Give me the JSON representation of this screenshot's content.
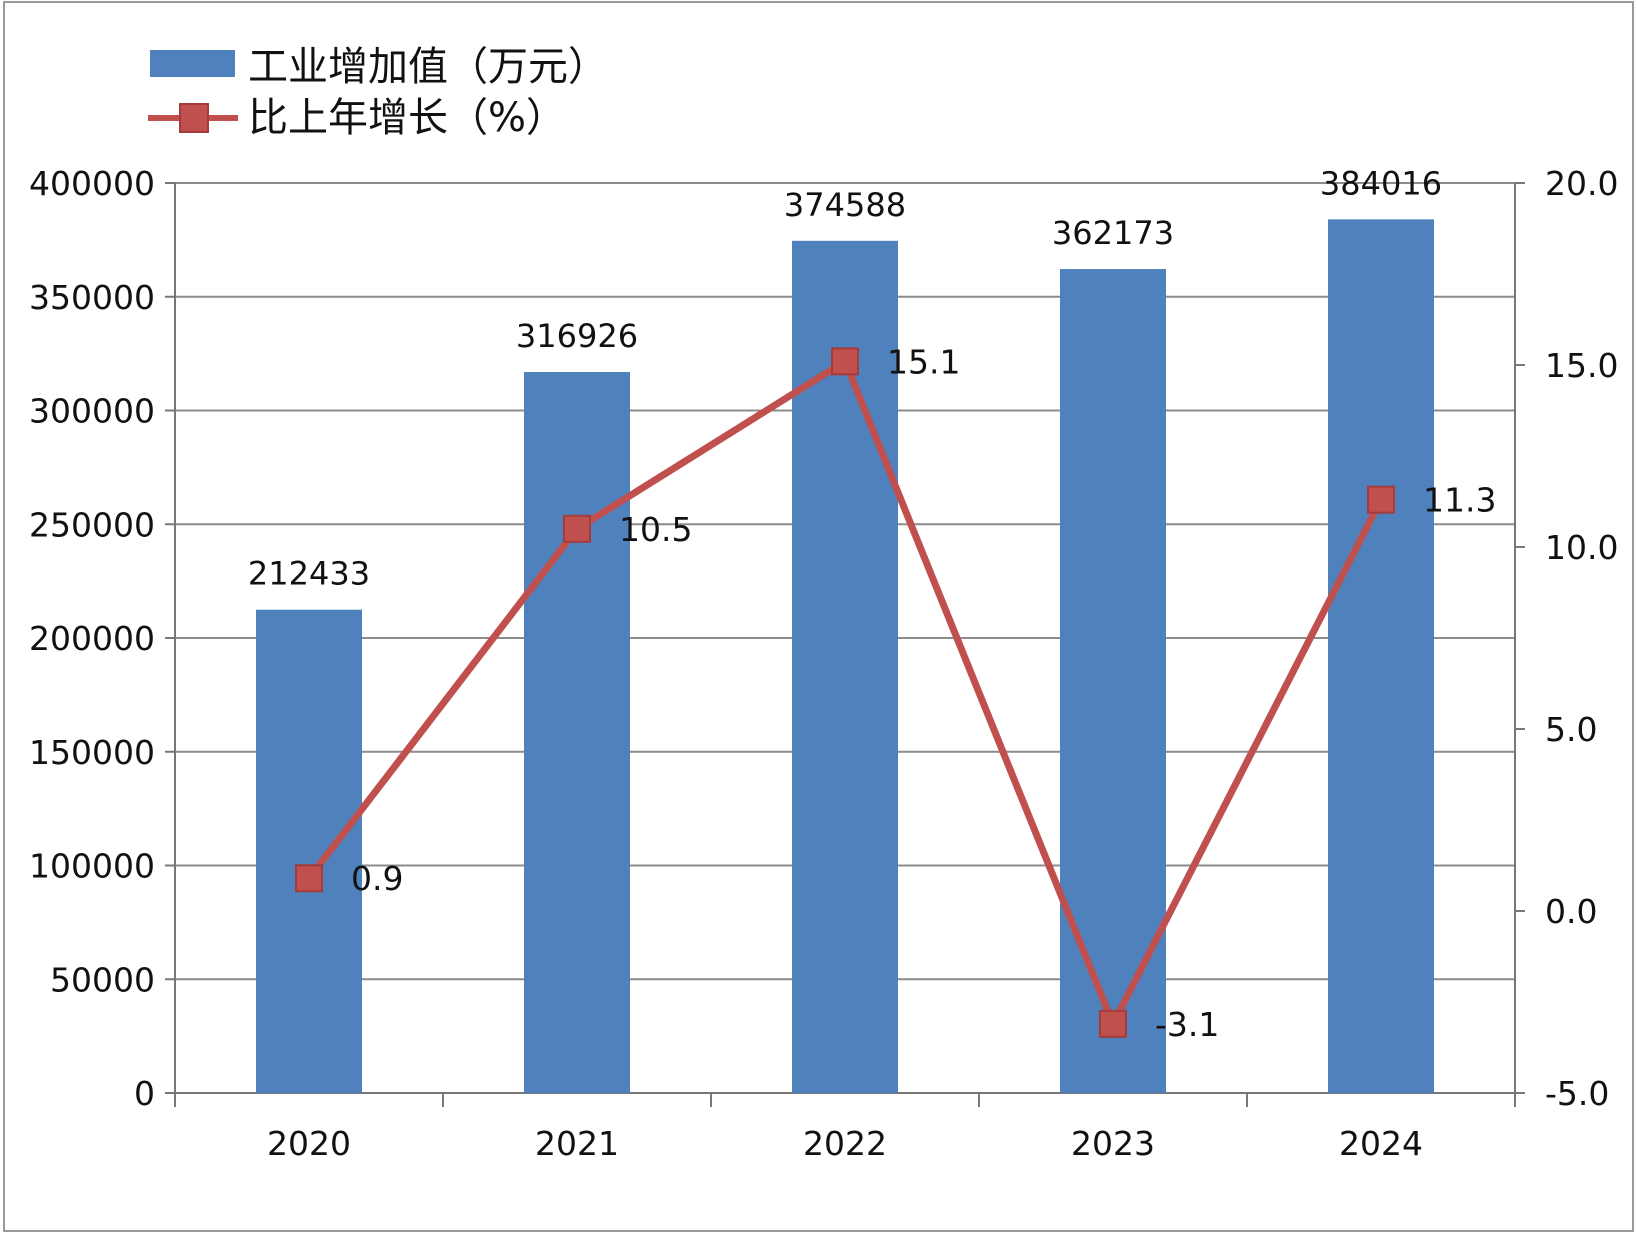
{
  "chart_data": {
    "type": "bar",
    "categories": [
      "2020",
      "2021",
      "2022",
      "2023",
      "2024"
    ],
    "series": [
      {
        "name": "工业增加值（万元）",
        "type": "bar",
        "axis": "left",
        "values": [
          212433,
          316926,
          374588,
          362173,
          384016
        ],
        "color": "#4f81bd"
      },
      {
        "name": "比上年增长（%）",
        "type": "line",
        "axis": "right",
        "values": [
          0.9,
          10.5,
          15.1,
          -3.1,
          11.3
        ],
        "color": "#c0504d"
      }
    ],
    "y_left": {
      "range": [
        0,
        400000
      ],
      "ticks": [
        "0",
        "50000",
        "100000",
        "150000",
        "200000",
        "250000",
        "300000",
        "350000",
        "400000"
      ]
    },
    "y_right": {
      "range": [
        -5.0,
        20.0
      ],
      "ticks": [
        "-5.0",
        "0.0",
        "5.0",
        "10.0",
        "15.0",
        "20.0"
      ]
    },
    "grid": true,
    "legend_position": "top-left"
  }
}
